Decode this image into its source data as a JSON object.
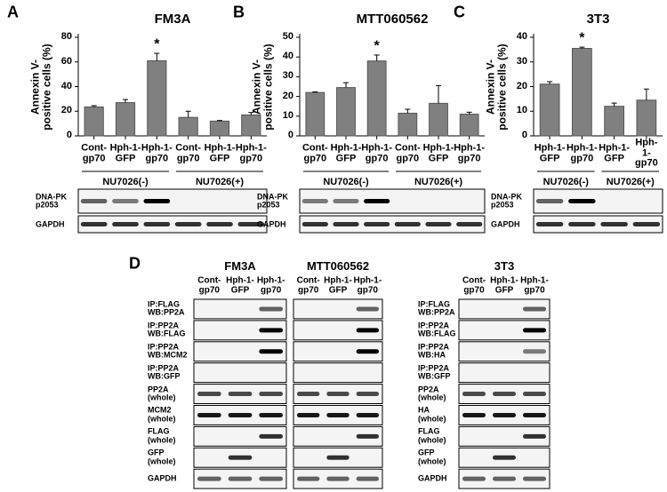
{
  "chart_data": [
    {
      "type": "bar",
      "panel": "A",
      "title": "FM3A",
      "y_label": "Annexin V-\npositive cells (%)",
      "categories": [
        "Cont-\ngp70",
        "Hph-1-\nGFP",
        "Hph-1-\ngp70",
        "Cont-\ngp70",
        "Hph-1-\nGFP",
        "Hph-1-\ngp70"
      ],
      "values": [
        23.5,
        27,
        61,
        15,
        12,
        17
      ],
      "errors": [
        1,
        2.5,
        6,
        5,
        0.5,
        2
      ],
      "star_labels": [
        null,
        null,
        "*",
        null,
        null,
        null
      ],
      "groups": [
        "NU7026(-)",
        "NU7026(+)"
      ],
      "color": "#808080",
      "ylim": [
        0,
        80
      ],
      "yticks": [
        0,
        20,
        40,
        60,
        80
      ],
      "blot_rows": [
        "DNA-PK\np2053",
        "GAPDH"
      ]
    },
    {
      "type": "bar",
      "panel": "B",
      "title": "MTT060562",
      "y_label": "Annexin V-\npositive cells (%)",
      "categories": [
        "Cont-\ngp70",
        "Hph-1-\nGFP",
        "Hph-1-\ngp70",
        "Cont-\ngp70",
        "Hph-1-\nGFP",
        "Hph-1-\ngp70"
      ],
      "values": [
        22,
        24.5,
        38,
        11.5,
        16.5,
        11
      ],
      "errors": [
        0.3,
        2.5,
        3,
        2,
        9,
        1
      ],
      "star_labels": [
        null,
        null,
        "*",
        null,
        null,
        null
      ],
      "groups": [
        "NU7026(-)",
        "NU7026(+)"
      ],
      "color": "#808080",
      "ylim": [
        0,
        50
      ],
      "yticks": [
        0,
        10,
        20,
        30,
        40,
        50
      ],
      "blot_rows": [
        "DNA-PK\np2053",
        "GAPDH"
      ]
    },
    {
      "type": "bar",
      "panel": "C",
      "title": "3T3",
      "y_label": "Annexin V-\npositive cells (%)",
      "categories": [
        "Hph-1-\nGFP",
        "Hph-1-\ngp70",
        "Hph-1-\nGFP",
        "Hph-1-\ngp70"
      ],
      "values": [
        21,
        35.5,
        12,
        14.5
      ],
      "errors": [
        1,
        0.5,
        1.3,
        4.5
      ],
      "star_labels": [
        null,
        "*",
        null,
        null
      ],
      "groups": [
        "NU7026(-)",
        "NU7026(+)"
      ],
      "color": "#808080",
      "ylim": [
        0,
        40
      ],
      "yticks": [
        0,
        10,
        20,
        30,
        40
      ],
      "blot_rows": [
        "DNA-PK\np2053",
        "GAPDH"
      ]
    }
  ],
  "panel_d": {
    "label": "D",
    "groups": [
      {
        "title": "FM3A",
        "lanes": [
          "Cont-\ngp70",
          "Hph-1-\nGFP",
          "Hph-1-\ngp70"
        ]
      },
      {
        "title": "MTT060562",
        "lanes": [
          "Cont-\ngp70",
          "Hph-1-\nGFP",
          "Hph-1-\ngp70"
        ]
      },
      {
        "title": "3T3",
        "lanes": [
          "Cont-\ngp70",
          "Hph-1-\nGFP",
          "Hph-1-\ngp70"
        ]
      }
    ],
    "row_labels": [
      [
        "IP:FLAG\nWB:PP2A",
        "IP:PP2A\nWB:FLAG",
        "IP:PP2A\nWB:MCM2",
        "IP:PP2A\nWB:GFP",
        "PP2A\n(whole)",
        "MCM2\n(whole)",
        "FLAG\n(whole)",
        "GFP\n(whole)",
        "GAPDH"
      ],
      [
        "IP:FLAG\nWB:PP2A",
        "IP:PP2A\nWB:FLAG",
        "IP:PP2A\nWB:HA",
        "IP:PP2A\nWB:GFP",
        "PP2A\n(whole)",
        "HA\n(whole)",
        "FLAG\n(whole)",
        "GFP\n(whole)",
        "GAPDH"
      ]
    ]
  }
}
